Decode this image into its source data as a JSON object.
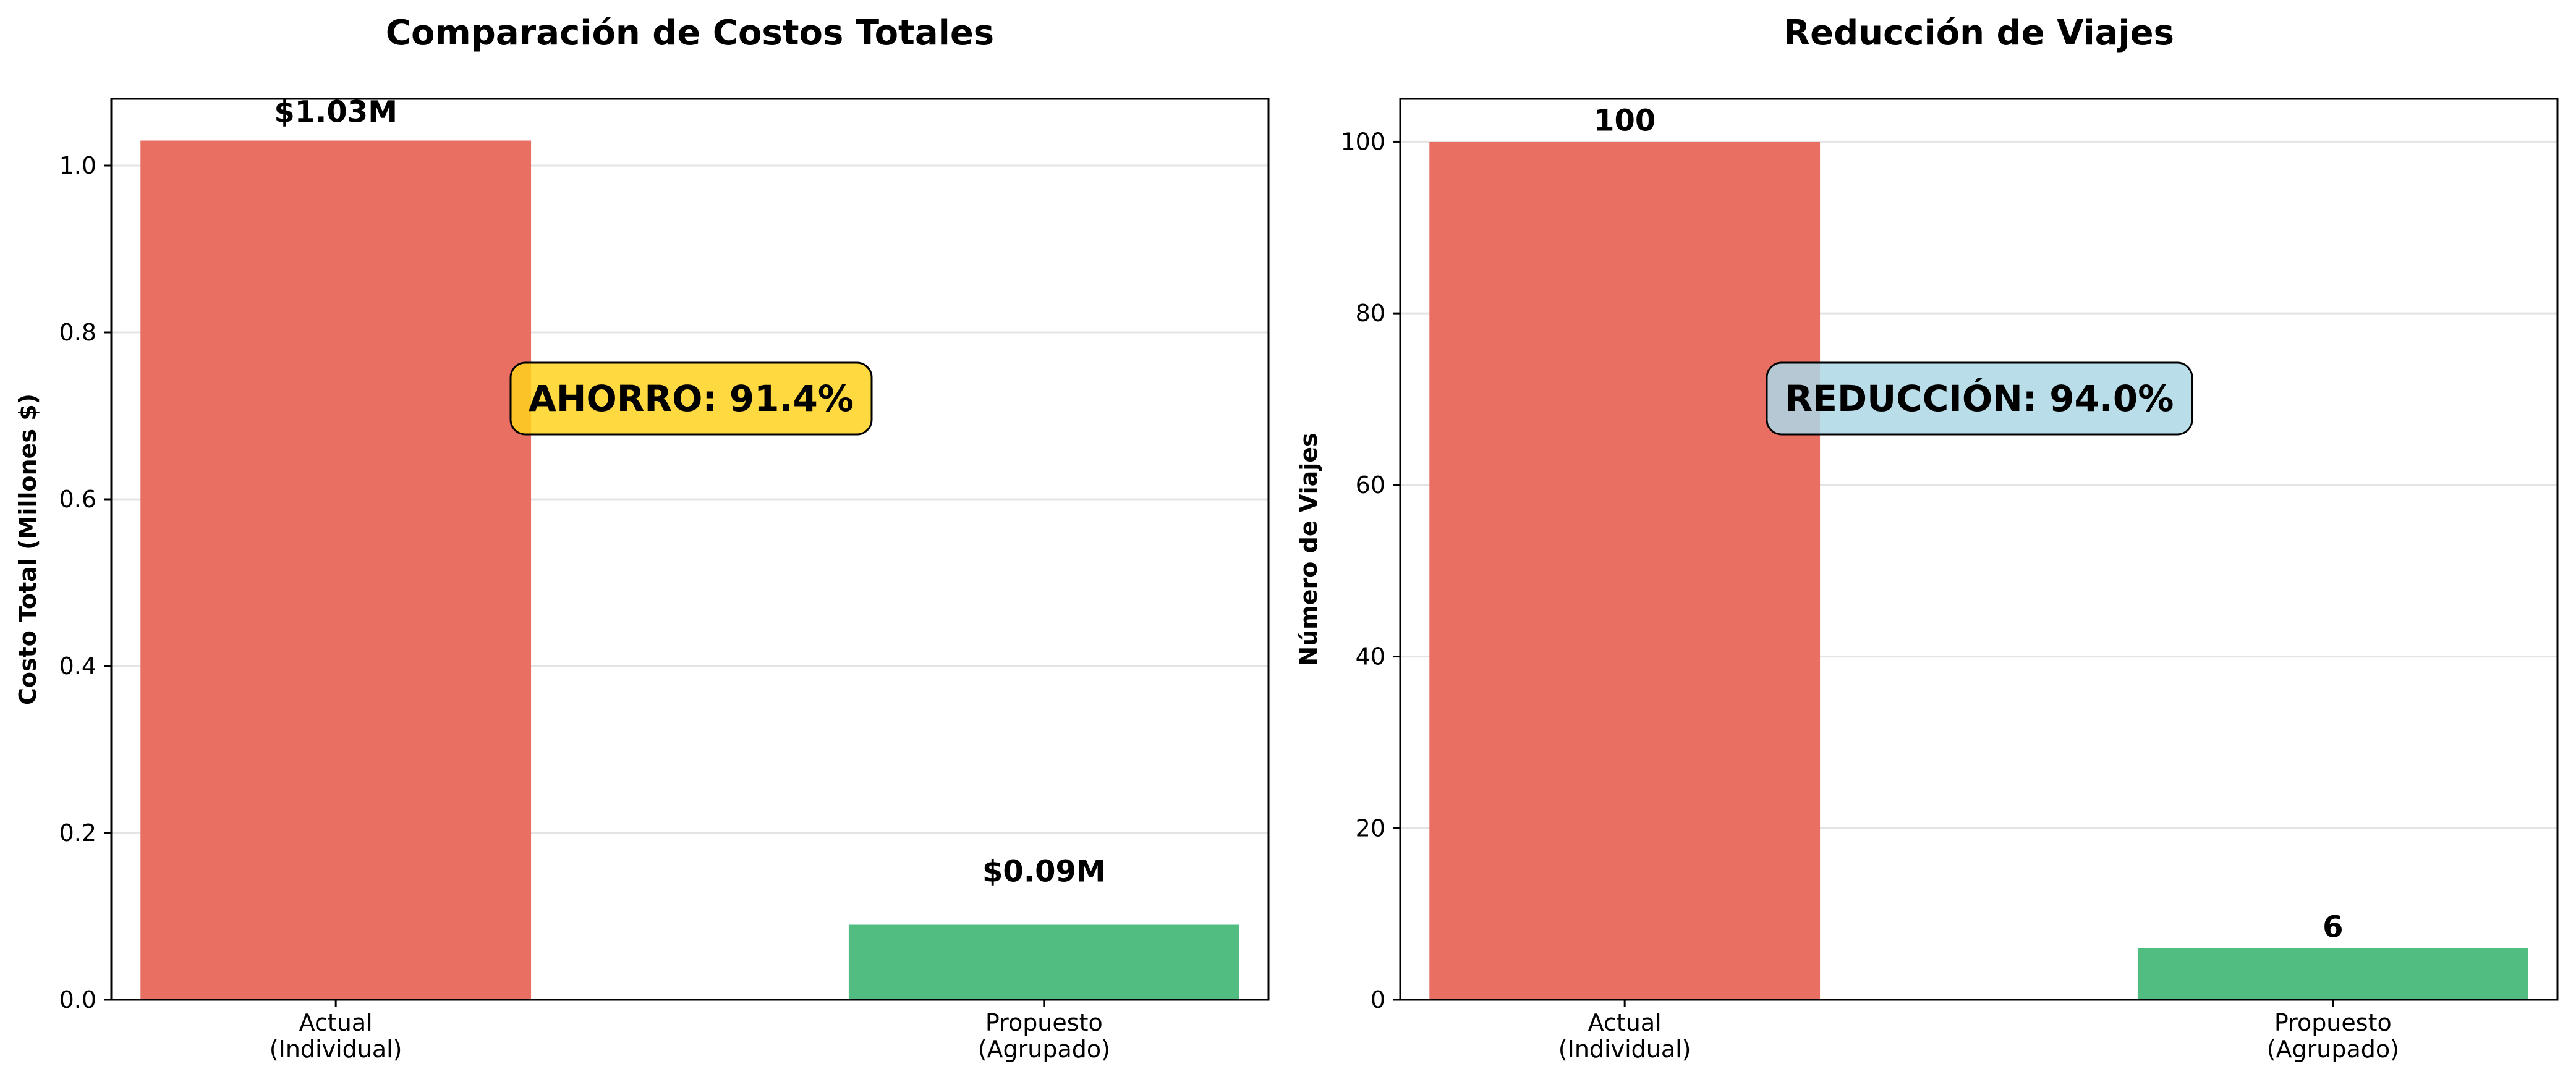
{
  "chart_data": [
    {
      "type": "bar",
      "title": "Comparación de Costos Totales",
      "xlabel": "",
      "ylabel": "Costo Total (Millones $)",
      "categories": [
        "Actual\n(Individual)",
        "Propuesto\n(Agrupado)"
      ],
      "values": [
        1.03,
        0.09
      ],
      "value_labels": [
        "$1.03M",
        "$0.09M"
      ],
      "bar_colors": [
        "#e96f63",
        "#52bd81"
      ],
      "ylim": [
        0,
        1.08
      ],
      "yticks": [
        0.0,
        0.2,
        0.4,
        0.6,
        0.8,
        1.0
      ],
      "ytick_labels": [
        "0.0",
        "0.2",
        "0.4",
        "0.6",
        "0.8",
        "1.0"
      ],
      "grid": "horizontal",
      "annotation": {
        "text": "AHORRO: 91.4%",
        "box_color": "#ffd21f"
      }
    },
    {
      "type": "bar",
      "title": "Reducción de Viajes",
      "xlabel": "",
      "ylabel": "Número de Viajes",
      "categories": [
        "Actual\n(Individual)",
        "Propuesto\n(Agrupado)"
      ],
      "values": [
        100,
        6
      ],
      "value_labels": [
        "100",
        "6"
      ],
      "bar_colors": [
        "#e96f63",
        "#52bd81"
      ],
      "ylim": [
        0,
        105
      ],
      "yticks": [
        0,
        20,
        40,
        60,
        80,
        100
      ],
      "ytick_labels": [
        "0",
        "20",
        "40",
        "60",
        "80",
        "100"
      ],
      "grid": "horizontal",
      "annotation": {
        "text": "REDUCCIÓN: 94.0%",
        "box_color": "#add8e6"
      }
    }
  ]
}
